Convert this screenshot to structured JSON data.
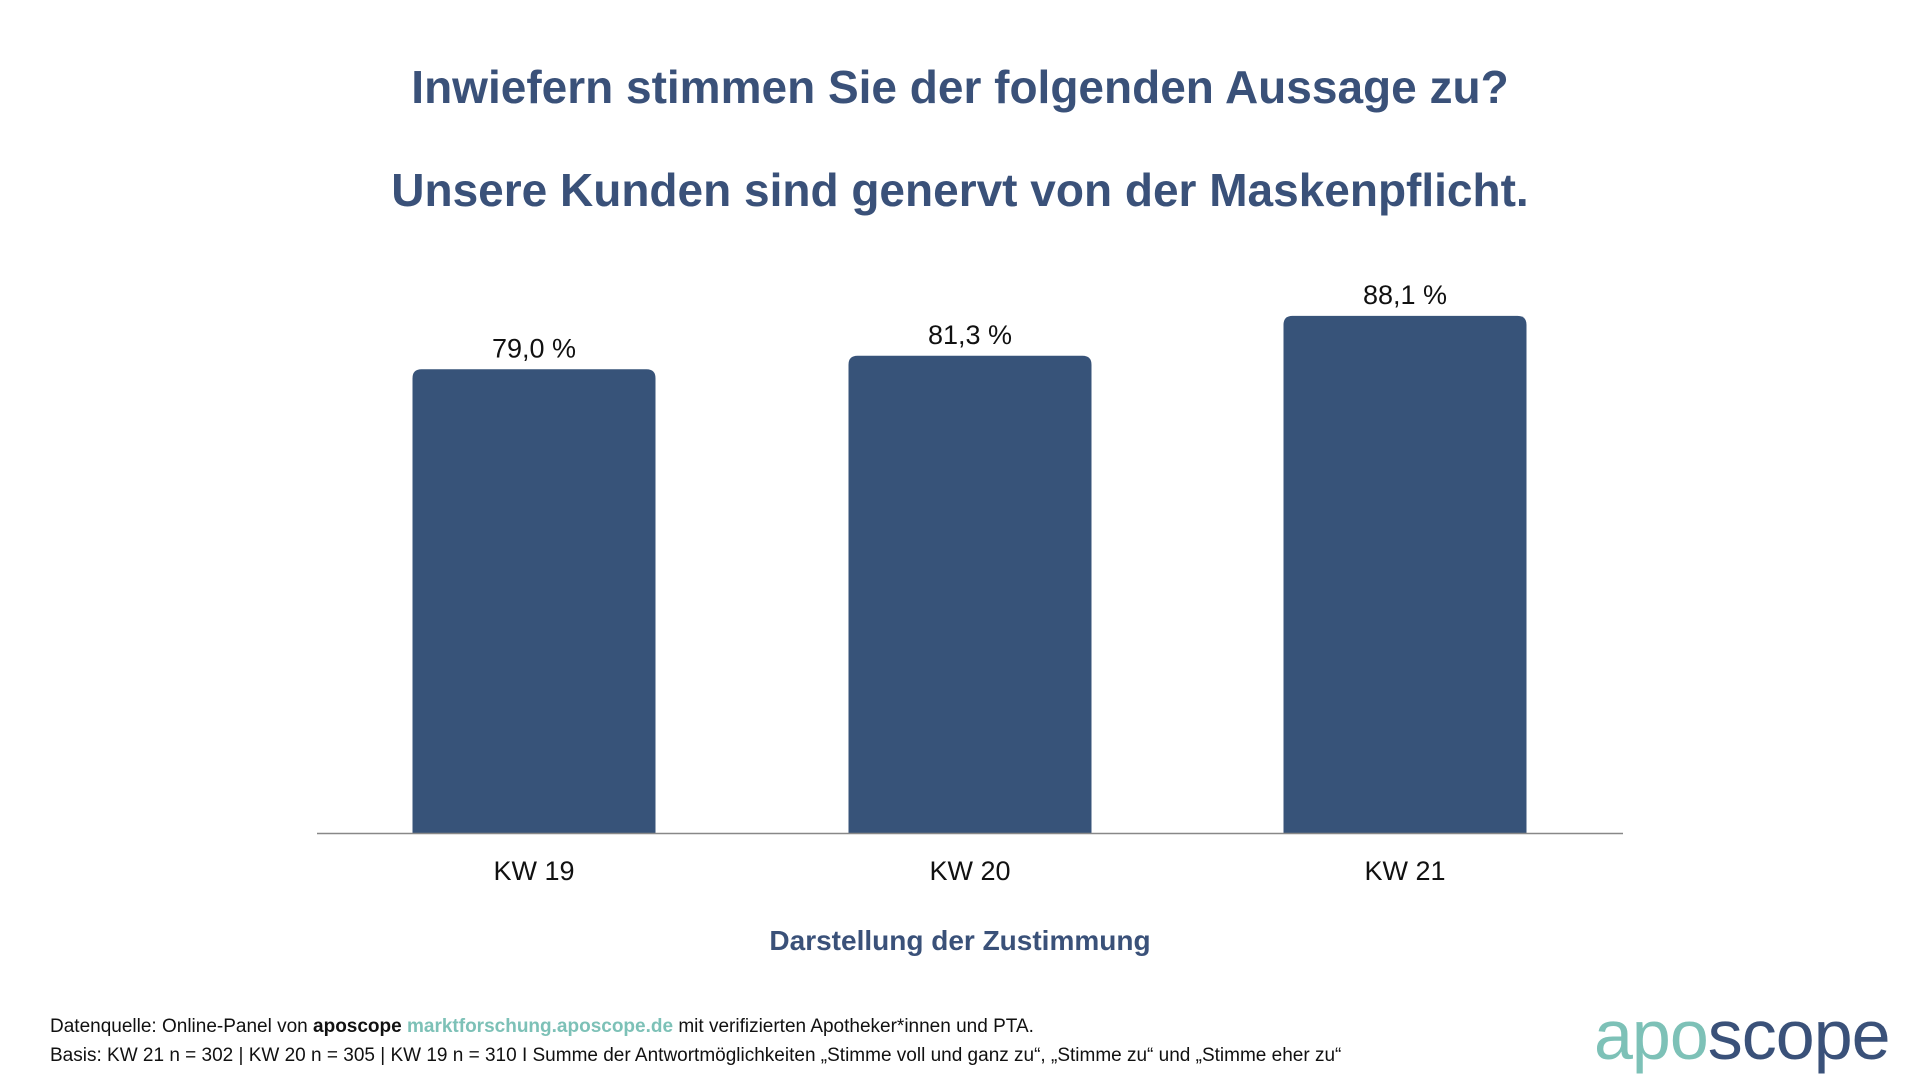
{
  "title": "Inwiefern stimmen Sie der folgenden Aussage zu?",
  "subtitle": "Unsere Kunden sind genervt von der Maskenpflicht.",
  "chart_data": {
    "type": "bar",
    "categories": [
      "KW 19",
      "KW 20",
      "KW 21"
    ],
    "values": [
      79.0,
      81.3,
      88.1
    ],
    "data_labels": [
      "79,0 %",
      "81,3 %",
      "88,1 %"
    ],
    "title": "Inwiefern stimmen Sie der folgenden Aussage zu?",
    "subtitle": "Unsere Kunden sind genervt von der Maskenpflicht.",
    "xlabel": "Darstellung der Zustimmung",
    "ylabel": "",
    "ylim": [
      0,
      100
    ],
    "grid": false,
    "bar_color": "#375379"
  },
  "footer": {
    "line1_prefix": "Datenquelle: Online-Panel von ",
    "line1_brand": "aposcope",
    "line1_link": "marktforschung.aposcope.de",
    "line1_suffix": " mit verifizierten Apotheker*innen und PTA.",
    "line2": "Basis: KW 21 n = 302 | KW 20 n = 305 | KW 19 n = 310 I Summe der Antwortmöglichkeiten „Stimme voll und ganz zu“, „Stimme zu“ und „Stimme eher zu“"
  },
  "logo": {
    "part1": "apo",
    "part2": "scope",
    "color1": "#7dc1b7",
    "color2": "#3a5179"
  }
}
